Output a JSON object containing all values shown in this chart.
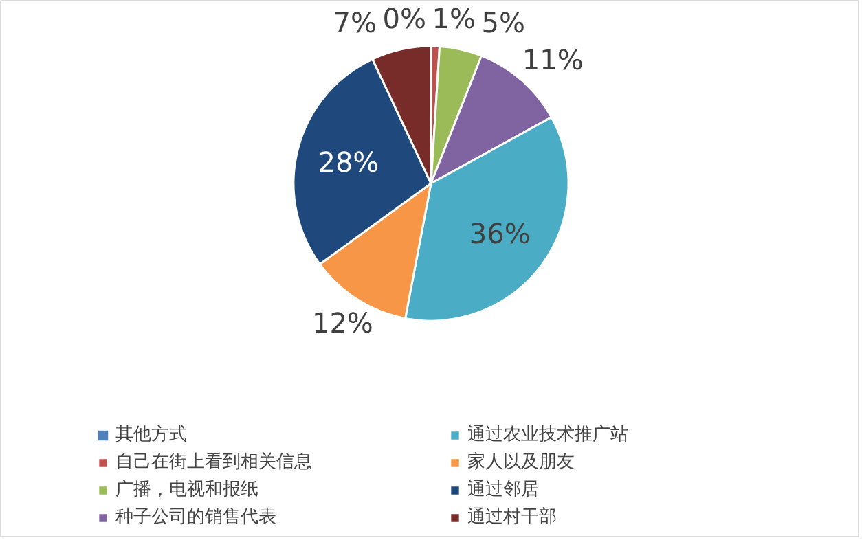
{
  "chart_data": {
    "type": "pie",
    "categories": [
      "其他方式",
      "自己在街上看到相关信息",
      "广播，电视和报纸",
      "种子公司的销售代表",
      "通过农业技术推广站",
      "家人以及朋友",
      "通过邻居",
      "通过村干部"
    ],
    "values": [
      0,
      1,
      5,
      11,
      36,
      12,
      28,
      7
    ],
    "colors": [
      "#4f81bd",
      "#c0504d",
      "#9bbb59",
      "#8064a2",
      "#4bacc6",
      "#f79646",
      "#1f497d",
      "#772c2a"
    ],
    "value_labels": [
      "0%",
      "1%",
      "5%",
      "11%",
      "36%",
      "12%",
      "28%",
      "7%"
    ],
    "legend": "bottom"
  }
}
